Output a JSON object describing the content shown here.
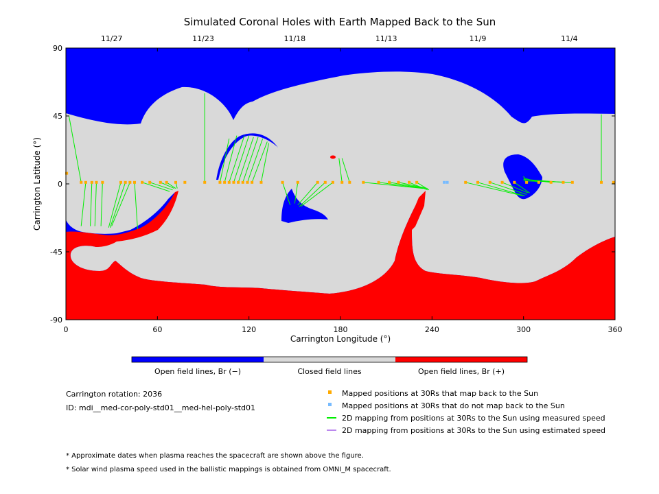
{
  "chart_data": {
    "type": "map",
    "title": "Simulated Coronal Holes with Earth Mapped Back to the Sun",
    "xlabel": "Carrington Longitude (°)",
    "ylabel": "Carrington Latitude (°)",
    "xlim": [
      0,
      360
    ],
    "ylim": [
      -90,
      90
    ],
    "x_ticks": [
      "0",
      "60",
      "120",
      "180",
      "240",
      "300",
      "360"
    ],
    "y_ticks": [
      "90",
      "45",
      "0",
      "-45",
      "-90"
    ],
    "top_dates": [
      {
        "label": "11/27",
        "lon": 30
      },
      {
        "label": "11/23",
        "lon": 90
      },
      {
        "label": "11/18",
        "lon": 150
      },
      {
        "label": "11/13",
        "lon": 210
      },
      {
        "label": "11/9",
        "lon": 270
      },
      {
        "label": "11/4",
        "lon": 330
      }
    ],
    "colorbar": [
      {
        "label": "Open field lines, Br (−)",
        "color": "#0000ff"
      },
      {
        "label": "Closed field lines",
        "color": "#d9d9d9"
      },
      {
        "label": "Open field lines, Br (+)",
        "color": "#ff0000"
      }
    ],
    "mapped_positions": [
      {
        "lon": 0.5,
        "lat": 7,
        "foot_lon": 0.5,
        "foot_lat": 7
      },
      {
        "lon": 10,
        "lat": 1,
        "foot_lon": 2,
        "foot_lat": 45
      },
      {
        "lon": 13,
        "lat": 1,
        "foot_lon": 10,
        "foot_lat": -28
      },
      {
        "lon": 17,
        "lat": 1,
        "foot_lon": 16,
        "foot_lat": -28
      },
      {
        "lon": 20,
        "lat": 1,
        "foot_lon": 19,
        "foot_lat": -28
      },
      {
        "lon": 24,
        "lat": 1,
        "foot_lon": 23,
        "foot_lat": -28
      },
      {
        "lon": 36,
        "lat": 1,
        "foot_lon": 28,
        "foot_lat": -29
      },
      {
        "lon": 39,
        "lat": 1,
        "foot_lon": 29,
        "foot_lat": -29
      },
      {
        "lon": 42,
        "lat": 1,
        "foot_lon": 30,
        "foot_lat": -28
      },
      {
        "lon": 45,
        "lat": 1,
        "foot_lon": 47,
        "foot_lat": -30
      },
      {
        "lon": 50,
        "lat": 1,
        "foot_lon": 68,
        "foot_lat": -5
      },
      {
        "lon": 55,
        "lat": 1,
        "foot_lon": 70,
        "foot_lat": -4
      },
      {
        "lon": 62,
        "lat": 1,
        "foot_lon": 71,
        "foot_lat": -3
      },
      {
        "lon": 66,
        "lat": 1,
        "foot_lon": 72,
        "foot_lat": -3
      },
      {
        "lon": 72,
        "lat": 1,
        "foot_lon": 73,
        "foot_lat": -3
      },
      {
        "lon": 78,
        "lat": 1,
        "foot_lon": 78,
        "foot_lat": 1
      },
      {
        "lon": 91,
        "lat": 1,
        "foot_lon": 91,
        "foot_lat": 60
      },
      {
        "lon": 101,
        "lat": 1,
        "foot_lon": 107,
        "foot_lat": 30
      },
      {
        "lon": 104,
        "lat": 1,
        "foot_lon": 112,
        "foot_lat": 32
      },
      {
        "lon": 107,
        "lat": 1,
        "foot_lon": 117,
        "foot_lat": 32
      },
      {
        "lon": 110,
        "lat": 1,
        "foot_lon": 120,
        "foot_lat": 32
      },
      {
        "lon": 113,
        "lat": 1,
        "foot_lon": 123,
        "foot_lat": 31
      },
      {
        "lon": 116,
        "lat": 1,
        "foot_lon": 126,
        "foot_lat": 31
      },
      {
        "lon": 119,
        "lat": 1,
        "foot_lon": 129,
        "foot_lat": 30
      },
      {
        "lon": 122,
        "lat": 1,
        "foot_lon": 132,
        "foot_lat": 28
      },
      {
        "lon": 128,
        "lat": 1,
        "foot_lon": 133,
        "foot_lat": 27
      },
      {
        "lon": 142,
        "lat": 1,
        "foot_lon": 147,
        "foot_lat": -14
      },
      {
        "lon": 152,
        "lat": 1,
        "foot_lon": 150,
        "foot_lat": -13
      },
      {
        "lon": 165,
        "lat": 1,
        "foot_lon": 152,
        "foot_lat": -14
      },
      {
        "lon": 170,
        "lat": 1,
        "foot_lon": 153,
        "foot_lat": -15
      },
      {
        "lon": 175,
        "lat": 1,
        "foot_lon": 154,
        "foot_lat": -15
      },
      {
        "lon": 181,
        "lat": 1,
        "foot_lon": 179,
        "foot_lat": 17
      },
      {
        "lon": 186,
        "lat": 1,
        "foot_lon": 181,
        "foot_lat": 17
      },
      {
        "lon": 195,
        "lat": 1,
        "foot_lon": 234,
        "foot_lat": -3
      },
      {
        "lon": 205,
        "lat": 1,
        "foot_lon": 235,
        "foot_lat": -3
      },
      {
        "lon": 212,
        "lat": 1,
        "foot_lon": 236,
        "foot_lat": -3
      },
      {
        "lon": 218,
        "lat": 1,
        "foot_lon": 237,
        "foot_lat": -3
      },
      {
        "lon": 225,
        "lat": 1,
        "foot_lon": 237,
        "foot_lat": -4
      },
      {
        "lon": 230,
        "lat": 1,
        "foot_lon": 238,
        "foot_lat": -4
      },
      {
        "lon": 262,
        "lat": 1,
        "foot_lon": 300,
        "foot_lat": -8
      },
      {
        "lon": 270,
        "lat": 1,
        "foot_lon": 301,
        "foot_lat": -8
      },
      {
        "lon": 278,
        "lat": 1,
        "foot_lon": 302,
        "foot_lat": -7
      },
      {
        "lon": 286,
        "lat": 1,
        "foot_lon": 303,
        "foot_lat": -6
      },
      {
        "lon": 294,
        "lat": 1,
        "foot_lon": 304,
        "foot_lat": -6
      },
      {
        "lon": 302,
        "lat": 1,
        "foot_lon": 300,
        "foot_lat": 5
      },
      {
        "lon": 310,
        "lat": 1,
        "foot_lon": 300,
        "foot_lat": 4
      },
      {
        "lon": 318,
        "lat": 1,
        "foot_lon": 300,
        "foot_lat": 3
      },
      {
        "lon": 326,
        "lat": 1,
        "foot_lon": 300,
        "foot_lat": 3
      },
      {
        "lon": 332,
        "lat": 1,
        "foot_lon": 300,
        "foot_lat": 2
      },
      {
        "lon": 351,
        "lat": 1,
        "foot_lon": 351,
        "foot_lat": 46
      },
      {
        "lon": 359,
        "lat": 1,
        "foot_lon": 359,
        "foot_lat": 1
      }
    ],
    "unmapped_positions": [
      {
        "lon": 248,
        "lat": 1
      },
      {
        "lon": 250,
        "lat": 1
      }
    ],
    "legend": [
      {
        "label": "Mapped positions at 30Rs that map back to the Sun",
        "color": "#ffaa00",
        "marker": "square"
      },
      {
        "label": "Mapped positions at 30Rs that do not map back to the Sun",
        "color": "#77bbff",
        "marker": "square"
      },
      {
        "label": "2D mapping from positions at 30Rs to the Sun using measured speed",
        "color": "#00ee00",
        "marker": "line"
      },
      {
        "label": "2D mapping from positions at 30Rs to the Sun using estimated speed",
        "color": "#bb88ee",
        "marker": "line"
      }
    ]
  },
  "info": {
    "rotation": "Carrington rotation: 2036",
    "id": "ID: mdi__med-cor-poly-std01__med-hel-poly-std01"
  },
  "notes": {
    "line1": "* Approximate dates when plasma reaches the spacecraft are shown above the figure.",
    "line2": "* Solar wind plasma speed used in the ballistic mappings is obtained from OMNI_M spacecraft."
  },
  "colors": {
    "negative": "#0000ff",
    "closed": "#d9d9d9",
    "positive": "#ff0000",
    "mapped": "#ffaa00",
    "unmapped": "#77bbff",
    "measured_line": "#00ee00",
    "estimated_line": "#bb88ee"
  }
}
